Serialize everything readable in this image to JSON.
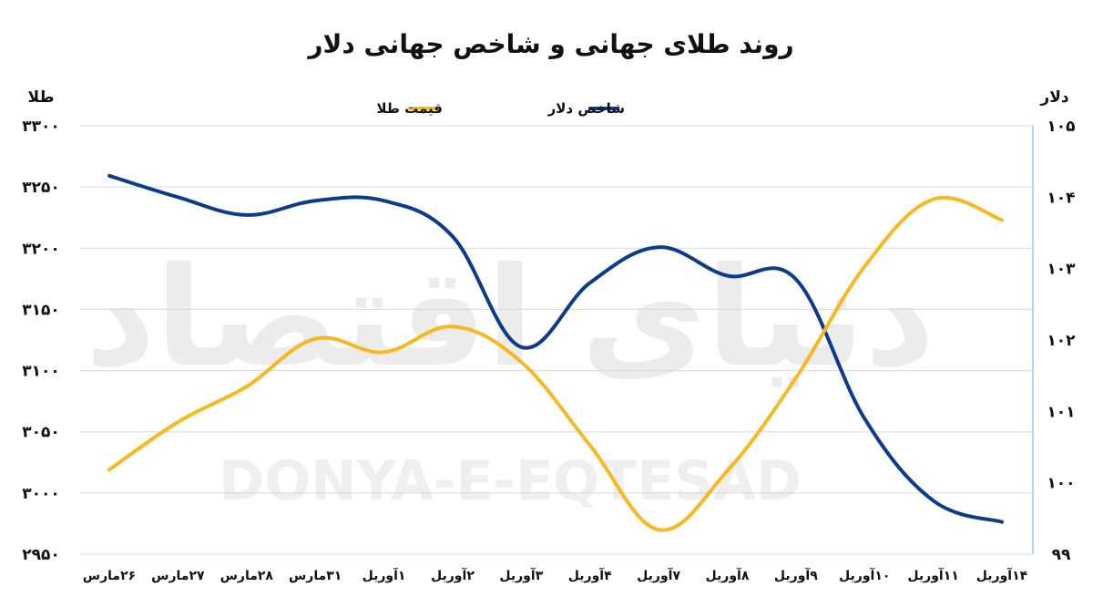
{
  "chart_data": {
    "type": "line",
    "title": "روند طلای جهانی و شاخص جهانی دلار",
    "watermark": {
      "persian": "دنیای اقتصاد",
      "latin": "DONYA-E-EQTESAD"
    },
    "categories": [
      "۲۶مارس",
      "۲۷مارس",
      "۲۸مارس",
      "۳۱مارس",
      "۱آوریل",
      "۲آوریل",
      "۳آوریل",
      "۴آوریل",
      "۷آوریل",
      "۸آوریل",
      "۹آوریل",
      "۱۰آوریل",
      "۱۱آوریل",
      "۱۴آوریل"
    ],
    "y_left": {
      "label": "طلا",
      "min": 2950,
      "max": 3300,
      "step": 50,
      "ticks": [
        "۲۹۵۰",
        "۳۰۰۰",
        "۳۰۵۰",
        "۳۱۰۰",
        "۳۱۵۰",
        "۳۲۰۰",
        "۳۲۵۰",
        "۳۳۰۰"
      ]
    },
    "y_right": {
      "label": "دلار",
      "min": 99,
      "max": 105,
      "step": 1,
      "ticks": [
        "۹۹",
        "۱۰۰",
        "۱۰۱",
        "۱۰۲",
        "۱۰۳",
        "۱۰۴",
        "۱۰۵"
      ]
    },
    "grid": true,
    "legend_position": "top-center",
    "series": [
      {
        "name": "شاخص دلار",
        "axis": "right",
        "color": "#0d3b8c",
        "values": [
          104.3,
          104.0,
          103.75,
          103.95,
          103.95,
          103.45,
          101.9,
          102.8,
          103.3,
          102.9,
          102.85,
          100.9,
          99.75,
          99.45
        ]
      },
      {
        "name": "قیمت طلا",
        "axis": "left",
        "color": "#f5b921",
        "values": [
          3019,
          3058,
          3087,
          3126,
          3115,
          3136,
          3107,
          3039,
          2970,
          3018,
          3094,
          3185,
          3240,
          3223
        ]
      }
    ]
  }
}
